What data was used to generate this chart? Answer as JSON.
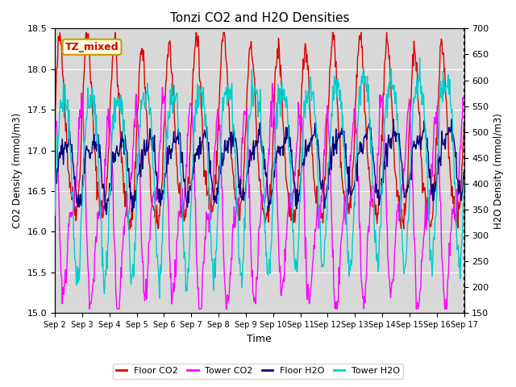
{
  "title": "Tonzi CO2 and H2O Densities",
  "xlabel": "Time",
  "ylabel_left": "CO2 Density (mmol/m3)",
  "ylabel_right": "H2O Density (mmol/m3)",
  "ylim_left": [
    15.0,
    18.5
  ],
  "ylim_right": [
    150,
    700
  ],
  "yticks_left": [
    15.0,
    15.5,
    16.0,
    16.5,
    17.0,
    17.5,
    18.0,
    18.5
  ],
  "yticks_right": [
    150,
    200,
    250,
    300,
    350,
    400,
    450,
    500,
    550,
    600,
    650,
    700
  ],
  "annotation_text": "TZ_mixed",
  "annotation_color": "#cc9900",
  "background_color": "#d8d8d8",
  "legend": [
    "Floor CO2",
    "Tower CO2",
    "Floor H2O",
    "Tower H2O"
  ],
  "line_colors": [
    "#dd0000",
    "#ff00ff",
    "#000080",
    "#00cccc"
  ],
  "n_days": 15,
  "points_per_day": 48
}
